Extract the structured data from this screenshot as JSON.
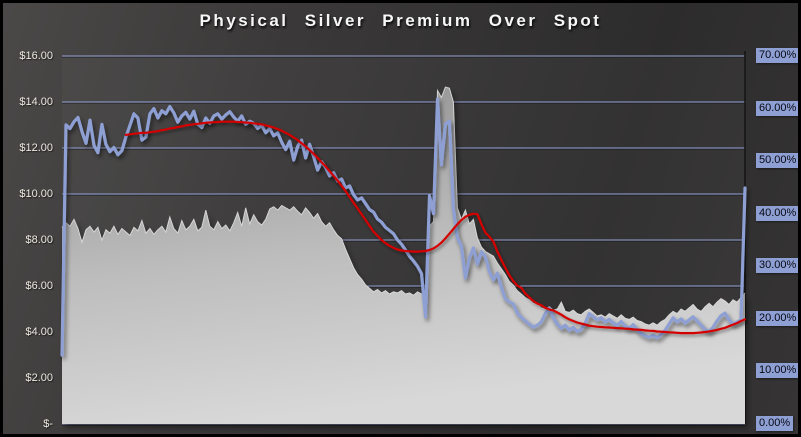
{
  "title": "Physical Silver Premium Over Spot",
  "colors": {
    "background_light": "#4b4948",
    "background_dark": "#2d2c2c",
    "gridline": "#93a1d6",
    "axis_line": "#161616",
    "left_tick_text": "#ece9e0",
    "right_tick_text": "#07070f",
    "right_tick_bg": "#8e9fd4",
    "premium_line": "#8e9fd4",
    "moving_average_line": "#d40000",
    "area_fill_top": "#8f8f8f",
    "area_fill_bottom": "#d8d8d8",
    "area_edge": "#dedede",
    "title_text": "#f7f7f7",
    "border": "#000000"
  },
  "axes": {
    "left": {
      "ticks": [
        {
          "label": "$16.00",
          "value": 16
        },
        {
          "label": "$14.00",
          "value": 14
        },
        {
          "label": "$12.00",
          "value": 12
        },
        {
          "label": "$10.00",
          "value": 10
        },
        {
          "label": "$8.00",
          "value": 8
        },
        {
          "label": "$6.00",
          "value": 6
        },
        {
          "label": "$4.00",
          "value": 4
        },
        {
          "label": "$2.00",
          "value": 2
        },
        {
          "label": "$-",
          "value": 0
        }
      ]
    },
    "right": {
      "ticks": [
        {
          "label": "70.00%",
          "value": 70
        },
        {
          "label": "60.00%",
          "value": 60
        },
        {
          "label": "50.00%",
          "value": 50
        },
        {
          "label": "40.00%",
          "value": 40
        },
        {
          "label": "30.00%",
          "value": 30
        },
        {
          "label": "20.00%",
          "value": 20
        },
        {
          "label": "10.00%",
          "value": 10
        },
        {
          "label": "0.00%",
          "value": 0
        }
      ]
    }
  },
  "chart_data": {
    "type": "area+line",
    "title": "Physical Silver Premium Over Spot",
    "grid": true,
    "legend": false,
    "x_labels_visible": false,
    "left_axis_range": [
      0,
      16
    ],
    "right_axis_range": [
      0,
      70
    ],
    "series": [
      {
        "id": "spot",
        "name": "spot-price-area",
        "type": "area",
        "axis": "left",
        "color": "#c4c4c4",
        "values": [
          8.55,
          8.75,
          8.6,
          8.9,
          8.5,
          7.9,
          8.45,
          8.6,
          8.35,
          8.55,
          8.0,
          8.45,
          8.3,
          8.6,
          8.25,
          8.5,
          8.35,
          8.2,
          8.55,
          8.4,
          8.85,
          8.3,
          8.5,
          8.25,
          8.45,
          8.6,
          8.35,
          9.0,
          8.5,
          8.3,
          8.85,
          8.45,
          8.6,
          8.9,
          8.4,
          8.55,
          9.3,
          8.6,
          8.45,
          8.8,
          8.5,
          8.65,
          8.4,
          8.75,
          9.2,
          8.6,
          9.4,
          8.7,
          9.1,
          8.8,
          8.65,
          8.9,
          9.35,
          9.45,
          9.3,
          9.5,
          9.4,
          9.3,
          9.45,
          9.25,
          9.1,
          9.4,
          9.2,
          8.95,
          9.15,
          8.8,
          8.6,
          8.75,
          8.45,
          8.2,
          8.05,
          7.6,
          7.2,
          6.8,
          6.5,
          6.3,
          6.05,
          5.9,
          5.75,
          5.85,
          5.7,
          5.8,
          5.65,
          5.75,
          5.7,
          5.8,
          5.65,
          5.7,
          5.6,
          5.75,
          5.65,
          5.6,
          8.6,
          8.8,
          14.5,
          14.2,
          14.65,
          14.6,
          14.0,
          9.4,
          8.9,
          9.3,
          8.7,
          8.9,
          8.1,
          7.7,
          7.5,
          7.4,
          7.3,
          7.0,
          6.75,
          6.5,
          6.2,
          6.05,
          5.8,
          5.65,
          5.5,
          5.4,
          5.25,
          5.2,
          5.05,
          5.0,
          5.1,
          4.95,
          5.0,
          5.3,
          4.9,
          4.85,
          4.95,
          4.8,
          4.75,
          4.9,
          5.0,
          4.85,
          4.7,
          4.75,
          4.65,
          4.8,
          4.7,
          4.6,
          4.75,
          4.6,
          4.55,
          4.65,
          4.5,
          4.45,
          4.35,
          4.3,
          4.4,
          4.3,
          4.45,
          4.55,
          4.75,
          4.9,
          4.8,
          5.0,
          4.9,
          5.05,
          5.2,
          5.0,
          4.9,
          5.1,
          5.25,
          5.1,
          5.3,
          5.45,
          5.35,
          5.2,
          5.4,
          5.3,
          5.5,
          5.7
        ]
      },
      {
        "id": "premium",
        "name": "premium-percent-line",
        "type": "line",
        "axis": "right",
        "color": "#8e9fd4",
        "values": [
          13.1,
          56.9,
          56.2,
          57.5,
          58.3,
          55.6,
          53.4,
          57.8,
          53.0,
          51.6,
          57.0,
          53.2,
          51.8,
          52.6,
          51.2,
          52.0,
          54.6,
          56.8,
          59.0,
          58.2,
          54.0,
          54.6,
          59.0,
          60.0,
          58.2,
          59.6,
          59.0,
          60.4,
          59.2,
          57.4,
          58.6,
          59.3,
          58.0,
          59.5,
          57.0,
          56.4,
          58.2,
          57.2,
          58.6,
          59.0,
          58.0,
          58.8,
          59.4,
          58.4,
          57.6,
          58.6,
          57.0,
          57.6,
          57.2,
          56.2,
          56.8,
          55.4,
          56.2,
          54.8,
          55.4,
          53.6,
          52.2,
          53.8,
          50.2,
          52.8,
          54.0,
          50.6,
          53.2,
          50.9,
          48.3,
          49.9,
          48.8,
          47.2,
          47.8,
          46.2,
          46.6,
          44.9,
          45.3,
          43.6,
          42.6,
          43.0,
          41.9,
          40.8,
          40.3,
          39.0,
          38.4,
          37.4,
          36.8,
          36.2,
          35.0,
          34.2,
          33.1,
          31.9,
          31.0,
          30.0,
          28.6,
          20.4,
          43.4,
          40.0,
          61.8,
          49.3,
          57.0,
          57.6,
          41.0,
          35.4,
          33.9,
          27.8,
          31.6,
          33.5,
          30.4,
          32.8,
          31.8,
          29.0,
          27.4,
          28.7,
          26.0,
          23.8,
          23.2,
          22.8,
          21.1,
          20.3,
          19.6,
          19.0,
          18.4,
          18.8,
          19.4,
          21.0,
          22.0,
          20.2,
          19.0,
          18.2,
          18.8,
          17.8,
          18.4,
          17.6,
          18.0,
          19.2,
          21.0,
          20.4,
          19.8,
          20.2,
          19.4,
          19.9,
          19.2,
          18.8,
          19.5,
          18.6,
          18.2,
          18.9,
          17.9,
          17.2,
          16.8,
          16.5,
          16.9,
          16.4,
          17.0,
          17.8,
          19.0,
          20.2,
          19.4,
          20.0,
          19.2,
          19.8,
          20.4,
          19.6,
          18.8,
          18.0,
          17.6,
          18.4,
          19.6,
          20.6,
          21.1,
          19.8,
          19.0,
          19.4,
          19.8,
          44.9
        ]
      },
      {
        "id": "moving_average",
        "name": "premium-moving-average-line",
        "type": "line",
        "axis": "right",
        "color": "#d40000",
        "values": [
          null,
          null,
          null,
          null,
          null,
          null,
          null,
          null,
          null,
          null,
          null,
          null,
          null,
          null,
          null,
          null,
          55.0,
          55.1,
          55.2,
          55.3,
          55.4,
          55.4,
          55.5,
          55.6,
          55.7,
          55.9,
          56.0,
          56.2,
          56.3,
          56.5,
          56.6,
          56.8,
          56.9,
          57.0,
          57.1,
          57.2,
          57.3,
          57.35,
          57.4,
          57.45,
          57.5,
          57.5,
          57.5,
          57.5,
          57.45,
          57.4,
          57.35,
          57.3,
          57.2,
          57.1,
          57.0,
          56.8,
          56.6,
          56.4,
          56.1,
          55.8,
          55.4,
          55.0,
          54.5,
          54.0,
          53.4,
          52.8,
          52.1,
          51.4,
          50.6,
          49.8,
          49.0,
          48.1,
          47.2,
          46.3,
          45.3,
          44.3,
          43.2,
          42.1,
          41.0,
          39.9,
          38.8,
          37.7,
          36.6,
          35.8,
          35.0,
          34.4,
          33.9,
          33.5,
          33.2,
          33.0,
          32.9,
          32.85,
          32.8,
          32.8,
          32.85,
          32.9,
          33.1,
          33.4,
          33.9,
          34.5,
          35.3,
          36.2,
          37.1,
          38.0,
          38.8,
          39.4,
          39.8,
          40.0,
          39.9,
          38.0,
          36.4,
          35.6,
          34.7,
          32.8,
          31.2,
          29.7,
          28.3,
          27.2,
          26.3,
          25.9,
          24.8,
          24.1,
          23.4,
          22.9,
          22.6,
          22.1,
          21.8,
          21.6,
          21.2,
          20.8,
          20.3,
          19.9,
          19.6,
          19.3,
          19.1,
          18.9,
          18.7,
          18.6,
          18.5,
          18.45,
          18.4,
          18.35,
          18.3,
          18.25,
          18.2,
          18.15,
          18.1,
          18.0,
          17.95,
          17.9,
          17.8,
          17.75,
          17.7,
          17.6,
          17.55,
          17.5,
          17.45,
          17.4,
          17.35,
          17.3,
          17.3,
          17.3,
          17.3,
          17.35,
          17.4,
          17.5,
          17.6,
          17.75,
          17.9,
          18.1,
          18.3,
          18.6,
          18.9,
          19.2,
          19.6,
          19.9
        ]
      }
    ]
  }
}
